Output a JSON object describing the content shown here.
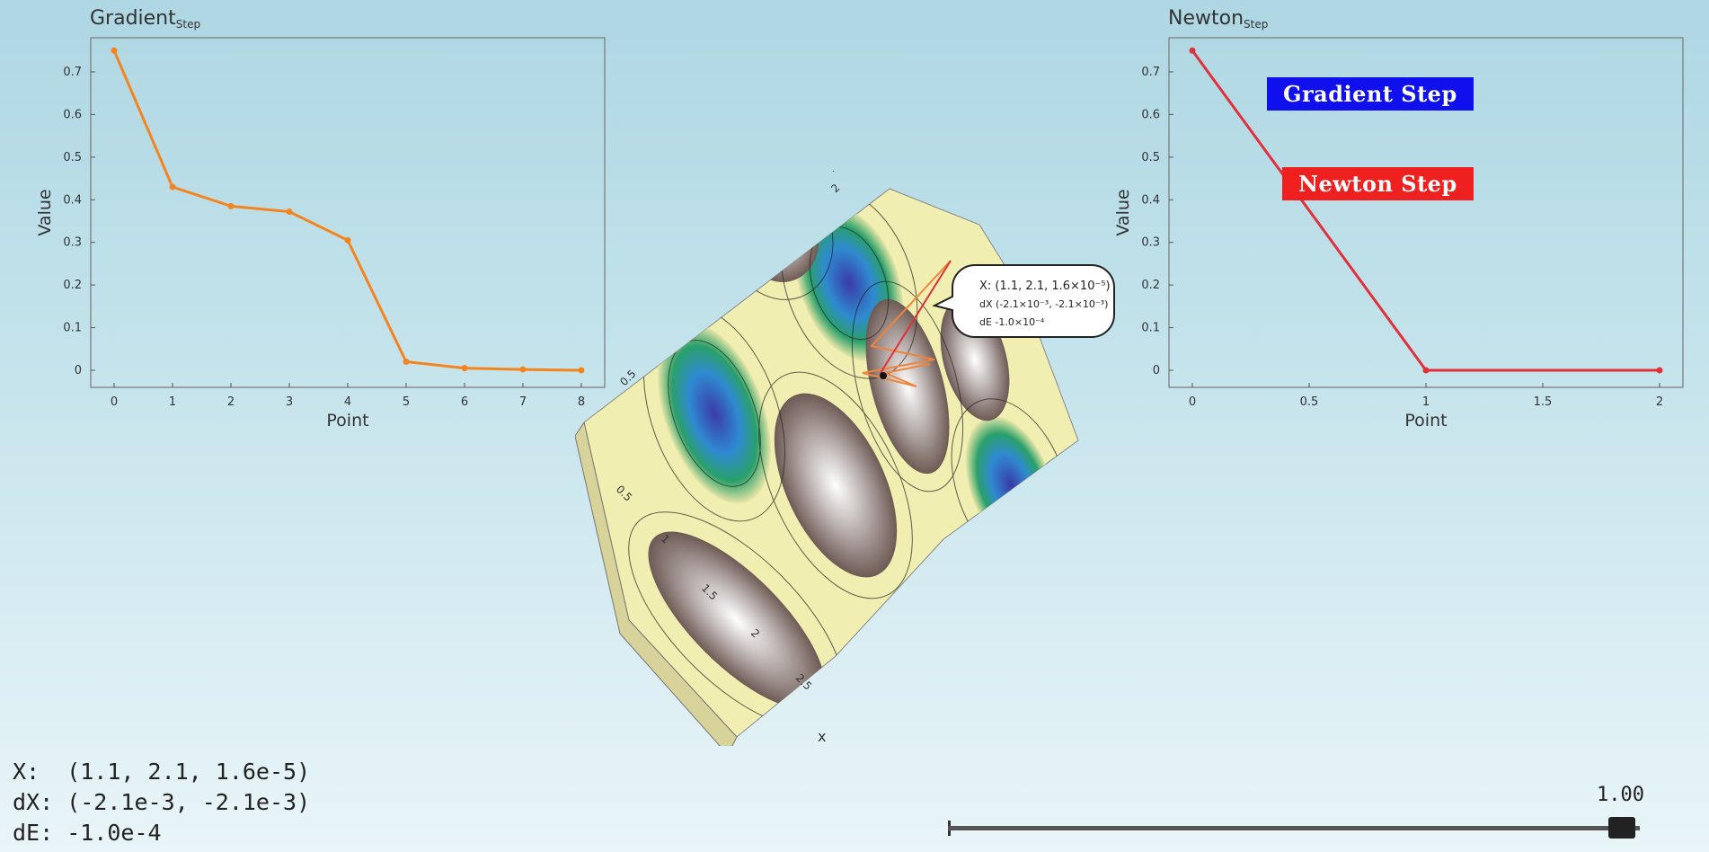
{
  "gradient_title": "Gradient",
  "gradient_sub": "Step",
  "newton_title": "Newton",
  "newton_sub": "Step",
  "legend": {
    "gradient": "Gradient Step",
    "newton": "Newton Step"
  },
  "readout": {
    "x": "X:  (1.1, 2.1, 1.6e-5)",
    "dx": "dX: (-2.1e-3, -2.1e-3)",
    "de": "dE: -1.0e-4"
  },
  "slider": {
    "value": "1.00",
    "fraction": 1.0
  },
  "tooltip": {
    "line1": "X: (1.1, 2.1, 1.6×10⁻⁵)",
    "line2": "dX (-2.1×10⁻³, -2.1×10⁻³)",
    "line3": "dE -1.0×10⁻⁴"
  },
  "surface_axis_labels": {
    "x": "x",
    "y": "y",
    "x_ticks": [
      "0.5",
      "1",
      "1.5",
      "2",
      "2.5"
    ],
    "y_ticks": [
      "0.5",
      "1",
      "1.5",
      "2"
    ]
  },
  "colors": {
    "gradient": "#f5841f",
    "newton": "#e0303a",
    "gradient_legend": "#1010ee",
    "newton_legend": "#ee2020"
  },
  "chart_data": [
    {
      "type": "line",
      "title": "Gradient",
      "xlabel": "Point",
      "ylabel": "Value",
      "x": [
        0,
        1,
        2,
        3,
        4,
        5,
        6,
        7,
        8
      ],
      "series": [
        {
          "values": [
            0.75,
            0.43,
            0.385,
            0.372,
            0.305,
            0.02,
            0.005,
            0.002,
            0.0
          ]
        }
      ],
      "xlim": [
        -0.4,
        8.4
      ],
      "ylim": [
        -0.04,
        0.78
      ],
      "xticks": [
        0,
        1,
        2,
        3,
        4,
        5,
        6,
        7,
        8
      ],
      "yticks": [
        0,
        0.1,
        0.2,
        0.3,
        0.4,
        0.5,
        0.6,
        0.7
      ],
      "grid": false
    },
    {
      "type": "line",
      "title": "Newton",
      "xlabel": "Point",
      "ylabel": "Value",
      "x": [
        0,
        1,
        2
      ],
      "series": [
        {
          "values": [
            0.75,
            0.0,
            0.0
          ]
        }
      ],
      "xlim": [
        -0.1,
        2.1
      ],
      "ylim": [
        -0.04,
        0.78
      ],
      "xticks": [
        0,
        0.5,
        1,
        1.5,
        2
      ],
      "yticks": [
        0,
        0.1,
        0.2,
        0.3,
        0.4,
        0.5,
        0.6,
        0.7
      ],
      "grid": false
    }
  ]
}
